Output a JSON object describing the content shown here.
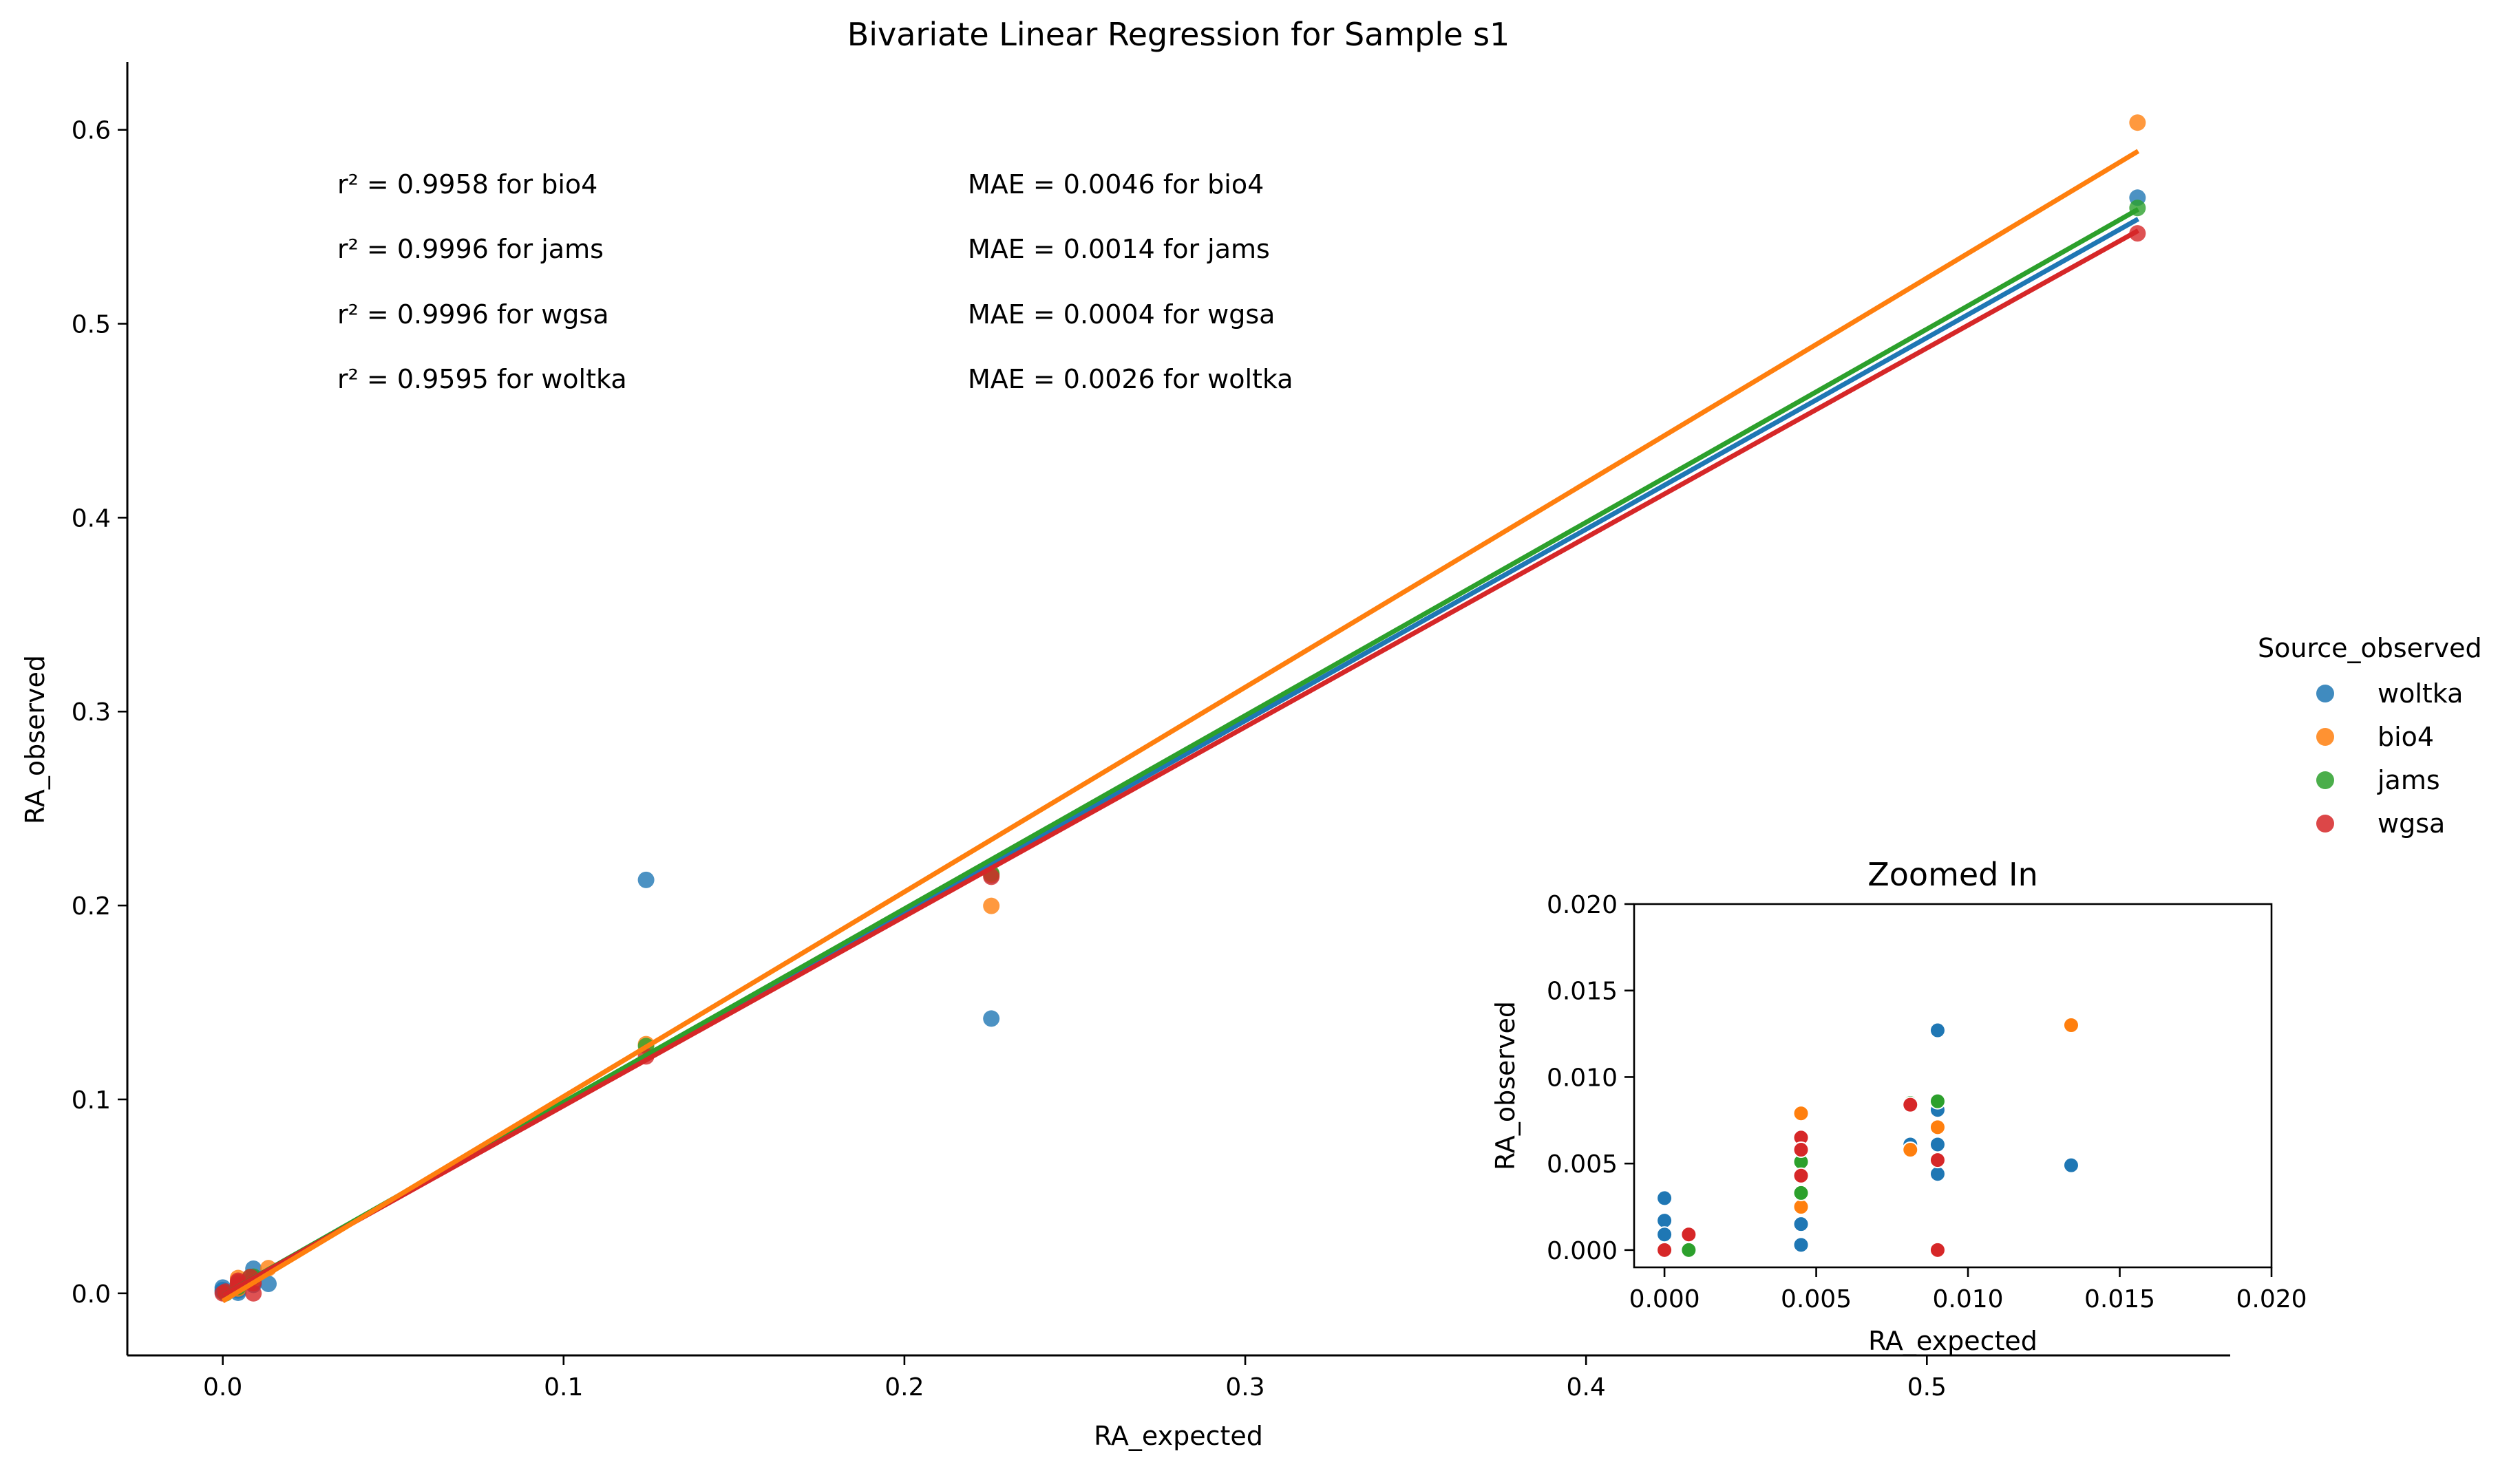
{
  "chart_data": [
    {
      "type": "scatter",
      "title": "Bivariate Linear Regression for Sample s1",
      "xlabel": "RA_expected",
      "ylabel": "RA_observed",
      "xlim": [
        -0.028,
        0.589
      ],
      "ylim": [
        -0.032,
        0.635
      ],
      "xticks": [
        0.0,
        0.1,
        0.2,
        0.3,
        0.4,
        0.5
      ],
      "xtick_labels": [
        "0.0",
        "0.1",
        "0.2",
        "0.3",
        "0.4",
        "0.5"
      ],
      "yticks": [
        0.0,
        0.1,
        0.2,
        0.3,
        0.4,
        0.5,
        0.6
      ],
      "ytick_labels": [
        "0.0",
        "0.1",
        "0.2",
        "0.3",
        "0.4",
        "0.5",
        "0.6"
      ],
      "grid": false,
      "legend": {
        "title": "Source_observed",
        "placement": "right",
        "entries": [
          {
            "label": "woltka",
            "color": "#1f77b4"
          },
          {
            "label": "bio4",
            "color": "#ff7f0e"
          },
          {
            "label": "jams",
            "color": "#2ca02c"
          },
          {
            "label": "wgsa",
            "color": "#d62728"
          }
        ]
      },
      "annotations": {
        "r2": [
          "r² = 0.9958 for bio4",
          "r² = 0.9996 for jams",
          "r² = 0.9996 for wgsa",
          "r² = 0.9595 for woltka"
        ],
        "mae": [
          "MAE = 0.0046 for bio4",
          "MAE = 0.0014 for jams",
          "MAE = 0.0004 for wgsa",
          "MAE = 0.0026 for woltka"
        ]
      },
      "regression_lines": [
        {
          "series": "woltka",
          "color": "#1f77b4",
          "x": [
            0.0,
            0.562
          ],
          "y": [
            -0.001,
            0.554
          ]
        },
        {
          "series": "jams",
          "color": "#2ca02c",
          "x": [
            0.0,
            0.562
          ],
          "y": [
            -0.001,
            0.559
          ]
        },
        {
          "series": "wgsa",
          "color": "#d62728",
          "x": [
            0.0,
            0.562
          ],
          "y": [
            -0.001,
            0.548
          ]
        },
        {
          "series": "bio4",
          "color": "#ff7f0e",
          "x": [
            0.0,
            0.562
          ],
          "y": [
            -0.004,
            0.589
          ]
        }
      ],
      "series": [
        {
          "name": "woltka",
          "color": "#1f77b4",
          "points": [
            [
              0.0,
              0.003
            ],
            [
              0.0,
              0.0017
            ],
            [
              0.0,
              0.0009
            ],
            [
              0.0045,
              0.0003
            ],
            [
              0.0045,
              0.0015
            ],
            [
              0.009,
              0.0127
            ],
            [
              0.009,
              0.0081
            ],
            [
              0.009,
              0.0061
            ],
            [
              0.009,
              0.0044
            ],
            [
              0.0081,
              0.0061
            ],
            [
              0.0134,
              0.0049
            ],
            [
              0.1242,
              0.2132
            ],
            [
              0.2255,
              0.1417
            ],
            [
              0.2255,
              0.2155
            ],
            [
              0.5618,
              0.565
            ]
          ]
        },
        {
          "name": "bio4",
          "color": "#ff7f0e",
          "points": [
            [
              0.0045,
              0.0079
            ],
            [
              0.0045,
              0.0025
            ],
            [
              0.0081,
              0.0058
            ],
            [
              0.009,
              0.0071
            ],
            [
              0.0134,
              0.013
            ],
            [
              0.1242,
              0.1285
            ],
            [
              0.2255,
              0.1998
            ],
            [
              0.2255,
              0.216
            ],
            [
              0.5618,
              0.6037
            ]
          ]
        },
        {
          "name": "jams",
          "color": "#2ca02c",
          "points": [
            [
              0.0008,
              0.0
            ],
            [
              0.0045,
              0.0051
            ],
            [
              0.0045,
              0.0033
            ],
            [
              0.0081,
              0.0085
            ],
            [
              0.009,
              0.0086
            ],
            [
              0.1242,
              0.1275
            ],
            [
              0.2255,
              0.2165
            ],
            [
              0.5618,
              0.5597
            ]
          ]
        },
        {
          "name": "wgsa",
          "color": "#d62728",
          "points": [
            [
              0.0,
              0.0
            ],
            [
              0.0008,
              0.0009
            ],
            [
              0.0045,
              0.0065
            ],
            [
              0.0045,
              0.0058
            ],
            [
              0.0045,
              0.0043
            ],
            [
              0.0081,
              0.0084
            ],
            [
              0.009,
              0.0052
            ],
            [
              0.009,
              0.0
            ],
            [
              0.1242,
              0.1222
            ],
            [
              0.2255,
              0.2148
            ],
            [
              0.5618,
              0.5466
            ]
          ]
        }
      ]
    },
    {
      "type": "scatter",
      "title": "Zoomed In",
      "xlabel": "RA_expected",
      "ylabel": "RA_observed",
      "xlim": [
        -0.001,
        0.02
      ],
      "ylim": [
        -0.001,
        0.02
      ],
      "xticks": [
        0.0,
        0.005,
        0.01,
        0.015,
        0.02
      ],
      "xtick_labels": [
        "0.000",
        "0.005",
        "0.010",
        "0.015",
        "0.020"
      ],
      "yticks": [
        0.0,
        0.005,
        0.01,
        0.015,
        0.02
      ],
      "ytick_labels": [
        "0.000",
        "0.005",
        "0.010",
        "0.015",
        "0.020"
      ],
      "grid": false
    }
  ]
}
